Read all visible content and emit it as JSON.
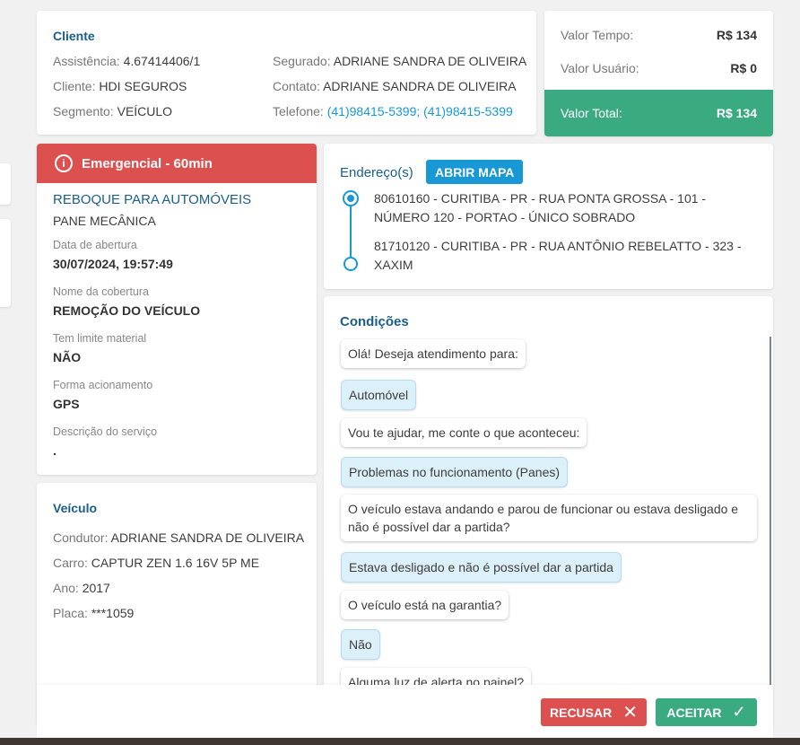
{
  "cliente": {
    "title": "Cliente",
    "assistencia_label": "Assistência:",
    "assistencia": "4.67414406/1",
    "cliente_label": "Cliente:",
    "cliente": "HDI SEGUROS",
    "segmento_label": "Segmento:",
    "segmento": "VEÍCULO",
    "segurado_label": "Segurado:",
    "segurado": "ADRIANE SANDRA DE OLIVEIRA",
    "contato_label": "Contato:",
    "contato": "ADRIANE SANDRA DE OLIVEIRA",
    "telefone_label": "Telefone:",
    "telefone": "(41)98415-5399; (41)98415-5399"
  },
  "valores": {
    "tempo_label": "Valor Tempo:",
    "tempo": "R$ 134",
    "usuario_label": "Valor Usuário:",
    "usuario": "R$ 0",
    "total_label": "Valor Total:",
    "total": "R$ 134",
    "total_color": "#3aaa80"
  },
  "servico": {
    "alert": "Emergencial - 60min",
    "alert_color": "#dc5050",
    "tipo": "REBOQUE PARA AUTOMÓVEIS",
    "subtipo": "PANE MECÂNICA",
    "fields": [
      {
        "label": "Data de abertura",
        "value": "30/07/2024, 19:57:49"
      },
      {
        "label": "Nome da cobertura",
        "value": "REMOÇÃO DO VEÍCULO"
      },
      {
        "label": "Tem limite material",
        "value": "NÃO"
      },
      {
        "label": "Forma acionamento",
        "value": "GPS"
      },
      {
        "label": "Descrição do serviço",
        "value": "."
      }
    ]
  },
  "veiculo": {
    "title": "Veículo",
    "condutor_label": "Condutor:",
    "condutor": "ADRIANE SANDRA DE OLIVEIRA",
    "carro_label": "Carro:",
    "carro": "CAPTUR ZEN 1.6 16V 5P ME",
    "ano_label": "Ano:",
    "ano": "2017",
    "placa_label": "Placa:",
    "placa": "***1059"
  },
  "enderecos": {
    "title": "Endereço(s)",
    "map_button": "ABRIR MAPA",
    "items": [
      "80610160 - CURITIBA - PR - RUA PONTA GROSSA - 101 - NÚMERO 120 - PORTAO - ÚNICO SOBRADO",
      "81710120 - CURITIBA - PR - RUA ANTÔNIO REBELATTO - 323 - XAXIM"
    ]
  },
  "condicoes": {
    "title": "Condições",
    "messages": [
      "Olá! Deseja atendimento para:",
      "Automóvel",
      "Vou te ajudar, me conte o que aconteceu:",
      "Problemas no funcionamento (Panes)",
      "O veículo estava andando e parou de funcionar ou estava desligado e não é possível dar a partida?",
      "Estava desligado e não é possível dar a partida",
      "O veículo está na garantia?",
      "Não",
      "Alguma luz de alerta no painel?"
    ]
  },
  "footer": {
    "recusar": "RECUSAR",
    "aceitar": "ACEITAR"
  }
}
